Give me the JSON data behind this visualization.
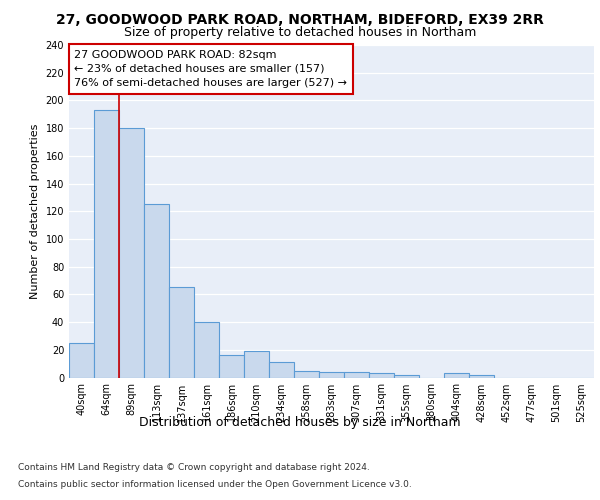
{
  "title1": "27, GOODWOOD PARK ROAD, NORTHAM, BIDEFORD, EX39 2RR",
  "title2": "Size of property relative to detached houses in Northam",
  "xlabel": "Distribution of detached houses by size in Northam",
  "ylabel": "Number of detached properties",
  "bins": [
    "40sqm",
    "64sqm",
    "89sqm",
    "113sqm",
    "137sqm",
    "161sqm",
    "186sqm",
    "210sqm",
    "234sqm",
    "258sqm",
    "283sqm",
    "307sqm",
    "331sqm",
    "355sqm",
    "380sqm",
    "404sqm",
    "428sqm",
    "452sqm",
    "477sqm",
    "501sqm",
    "525sqm"
  ],
  "values": [
    25,
    193,
    180,
    125,
    65,
    40,
    16,
    19,
    11,
    5,
    4,
    4,
    3,
    2,
    0,
    3,
    2,
    0,
    0,
    0,
    0
  ],
  "bar_color": "#c9d9ed",
  "bar_edge_color": "#5b9bd5",
  "red_line_x": 1.5,
  "annotation_text": "27 GOODWOOD PARK ROAD: 82sqm\n← 23% of detached houses are smaller (157)\n76% of semi-detached houses are larger (527) →",
  "annotation_box_facecolor": "#ffffff",
  "annotation_box_edgecolor": "#cc0000",
  "footer1": "Contains HM Land Registry data © Crown copyright and database right 2024.",
  "footer2": "Contains public sector information licensed under the Open Government Licence v3.0.",
  "ylim": [
    0,
    240
  ],
  "plot_bg_color": "#e8eef8",
  "grid_color": "#ffffff",
  "title1_fontsize": 10,
  "title2_fontsize": 9,
  "ylabel_fontsize": 8,
  "xlabel_fontsize": 9,
  "tick_fontsize": 7,
  "annotation_fontsize": 8,
  "footer_fontsize": 6.5
}
